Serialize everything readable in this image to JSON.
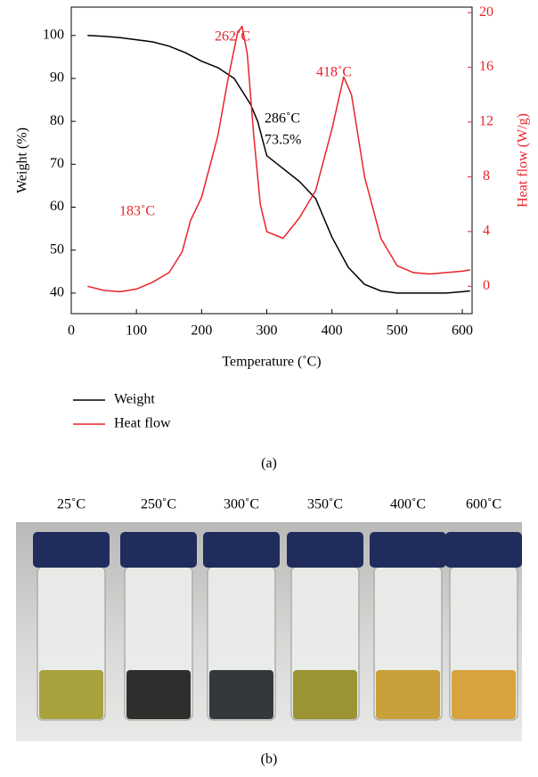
{
  "chart_data": {
    "type": "line",
    "xlabel": "Temperature (˚C)",
    "ylabel": "Weight (%)",
    "y2label": "Heat flow (W/g)",
    "xlim": [
      0,
      615
    ],
    "xticks": [
      0,
      100,
      200,
      300,
      400,
      500,
      600
    ],
    "ylim": [
      35.2,
      106.6
    ],
    "yticks": [
      40,
      50,
      60,
      70,
      80,
      90,
      100
    ],
    "y2lim": [
      -2,
      20.4
    ],
    "y2ticks": [
      0,
      4,
      8,
      12,
      16,
      20
    ],
    "series": [
      {
        "name": "Weight",
        "color": "#000000",
        "x": [
          25,
          50,
          75,
          100,
          125,
          150,
          175,
          200,
          225,
          250,
          275,
          286,
          300,
          325,
          350,
          375,
          400,
          425,
          450,
          475,
          500,
          525,
          550,
          575,
          600,
          612
        ],
        "values": [
          100,
          99.8,
          99.5,
          99,
          98.5,
          97.5,
          96,
          94,
          92.5,
          90,
          84,
          80,
          72,
          69,
          66,
          62,
          53,
          46,
          42,
          40.5,
          40,
          40,
          40,
          40,
          40.3,
          40.5
        ]
      },
      {
        "name": "Heat flow",
        "color": "#e8242a",
        "axis": "y2",
        "x": [
          25,
          50,
          75,
          100,
          125,
          150,
          170,
          183,
          200,
          225,
          240,
          255,
          262,
          270,
          280,
          290,
          300,
          325,
          350,
          375,
          400,
          418,
          430,
          450,
          475,
          500,
          525,
          550,
          575,
          600,
          612
        ],
        "values": [
          0,
          -0.3,
          -0.4,
          -0.2,
          0.3,
          1,
          2.5,
          4.8,
          6.5,
          11,
          15,
          18.5,
          19,
          17,
          11,
          6,
          4,
          3.5,
          5,
          7,
          11.5,
          15.3,
          14,
          8,
          3.5,
          1.5,
          1,
          0.9,
          1,
          1.1,
          1.2
        ]
      }
    ],
    "annotations": [
      {
        "text": "262˚C",
        "color": "#e8242a"
      },
      {
        "text": "418˚C",
        "color": "#e8242a"
      },
      {
        "text": "183˚C",
        "color": "#e8242a"
      },
      {
        "text": "286˚C",
        "color": "#000000"
      },
      {
        "text": "73.5%",
        "color": "#000000"
      }
    ],
    "legend": "below"
  },
  "panel_a_label": "(a)",
  "photo": {
    "labels": [
      "25˚C",
      "250˚C",
      "300˚C",
      "350˚C",
      "400˚C",
      "600˚C"
    ],
    "panel_label": "(b)"
  }
}
